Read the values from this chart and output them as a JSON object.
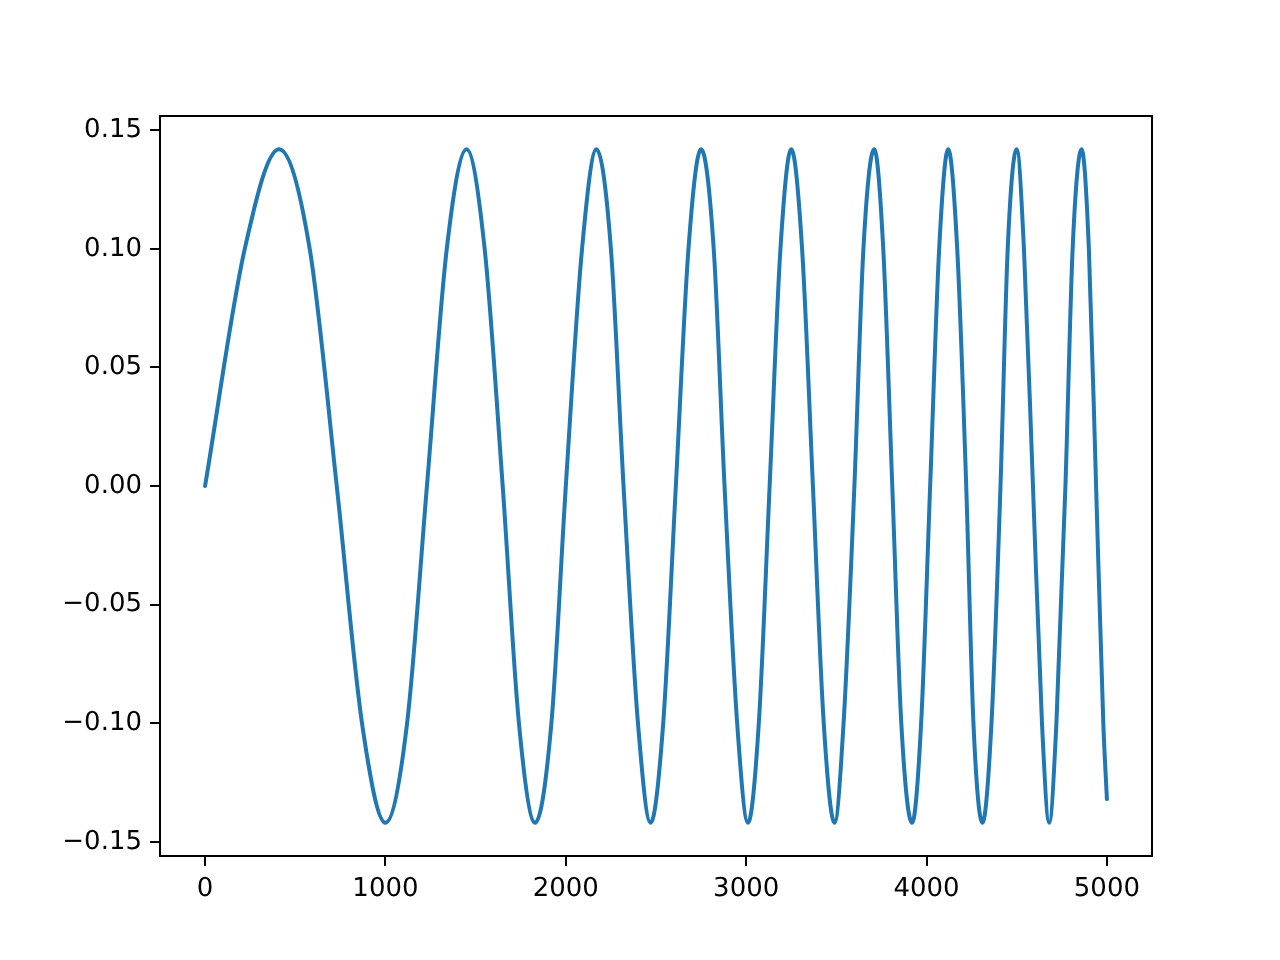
{
  "chart_data": {
    "type": "line",
    "x": [
      0,
      220,
      410,
      580,
      730,
      870,
      1000,
      1120,
      1230,
      1340,
      1450,
      1550,
      1650,
      1740,
      1830,
      1920,
      2000,
      2090,
      2170,
      2250,
      2320,
      2400,
      2470,
      2540,
      2610,
      2680,
      2750,
      2820,
      2880,
      2950,
      3010,
      3070,
      3130,
      3190,
      3250,
      3310,
      3370,
      3430,
      3490,
      3540,
      3600,
      3650,
      3710,
      3760,
      3810,
      3860,
      3920,
      3970,
      4020,
      4070,
      4120,
      4170,
      4220,
      4260,
      4310,
      4360,
      4410,
      4450,
      4500,
      4540,
      4590,
      4640,
      4680,
      4720,
      4770,
      4810,
      4860,
      4900,
      4940,
      4980,
      5000
    ],
    "series": [
      {
        "color": "#1f77b4",
        "values": [
          0,
          0.1,
          0.142,
          0.1,
          0,
          -0.1,
          -0.142,
          -0.1,
          0,
          0.1,
          0.142,
          0.1,
          0,
          -0.1,
          -0.142,
          -0.1,
          0,
          0.1,
          0.142,
          0.1,
          0,
          -0.1,
          -0.142,
          -0.1,
          0,
          0.1,
          0.142,
          0.1,
          0,
          -0.1,
          -0.142,
          -0.1,
          0,
          0.1,
          0.142,
          0.1,
          0,
          -0.1,
          -0.142,
          -0.1,
          0,
          0.1,
          0.142,
          0.1,
          0,
          -0.1,
          -0.142,
          -0.1,
          0,
          0.1,
          0.142,
          0.1,
          0,
          -0.1,
          -0.142,
          -0.1,
          0,
          0.1,
          0.142,
          0.1,
          0,
          -0.1,
          -0.142,
          -0.1,
          0,
          0.1,
          0.142,
          0.1,
          0,
          -0.1,
          -0.132
        ]
      }
    ],
    "xlim": [
      -250,
      5250
    ],
    "ylim": [
      -0.156,
      0.156
    ],
    "xticks": [
      0,
      1000,
      2000,
      3000,
      4000,
      5000
    ],
    "yticks": [
      {
        "value": -0.15,
        "label": "−0.15"
      },
      {
        "value": -0.1,
        "label": "−0.10"
      },
      {
        "value": -0.05,
        "label": "−0.05"
      },
      {
        "value": 0,
        "label": "0.00"
      },
      {
        "value": 0.05,
        "label": "0.05"
      },
      {
        "value": 0.1,
        "label": "0.10"
      },
      {
        "value": 0.15,
        "label": "0.15"
      }
    ]
  }
}
